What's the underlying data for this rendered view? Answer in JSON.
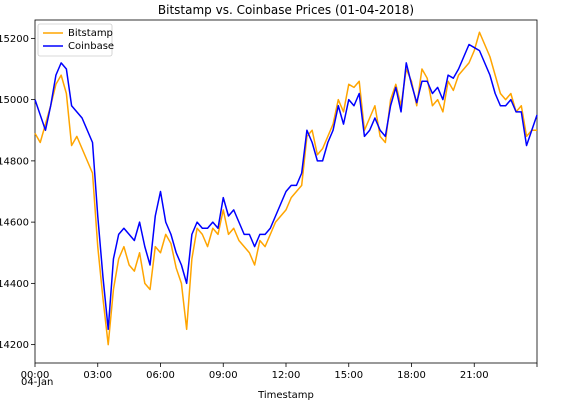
{
  "chart_data": {
    "type": "line",
    "title": "Bitstamp vs. Coinbase Prices (01-04-2018)",
    "xlabel": "Timestamp",
    "ylabel": "",
    "x_ticks": [
      "00:00",
      "03:00",
      "06:00",
      "09:00",
      "12:00",
      "15:00",
      "18:00",
      "21:00",
      ""
    ],
    "x_tick_hours": [
      0,
      3,
      6,
      9,
      12,
      15,
      18,
      21,
      24
    ],
    "x_date_label": "04-Jan",
    "xlim": [
      0,
      24
    ],
    "y_ticks": [
      14200,
      14400,
      14600,
      14800,
      15000,
      15200
    ],
    "ylim": [
      14140,
      15260
    ],
    "grid": false,
    "legend_position": "top-left",
    "series": [
      {
        "name": "Bitstamp",
        "color": "#ffa500",
        "x": [
          0.0,
          0.25,
          0.5,
          0.75,
          1.0,
          1.25,
          1.5,
          1.75,
          2.0,
          2.25,
          2.5,
          2.75,
          3.0,
          3.25,
          3.5,
          3.75,
          4.0,
          4.25,
          4.5,
          4.75,
          5.0,
          5.25,
          5.5,
          5.75,
          6.0,
          6.25,
          6.5,
          6.75,
          7.0,
          7.25,
          7.5,
          7.75,
          8.0,
          8.25,
          8.5,
          8.75,
          9.0,
          9.25,
          9.5,
          9.75,
          10.0,
          10.25,
          10.5,
          10.75,
          11.0,
          11.25,
          11.5,
          11.75,
          12.0,
          12.25,
          12.5,
          12.75,
          13.0,
          13.25,
          13.5,
          13.75,
          14.0,
          14.25,
          14.5,
          14.75,
          15.0,
          15.25,
          15.5,
          15.75,
          16.0,
          16.25,
          16.5,
          16.75,
          17.0,
          17.25,
          17.5,
          17.75,
          18.0,
          18.25,
          18.5,
          18.75,
          19.0,
          19.25,
          19.5,
          19.75,
          20.0,
          20.25,
          20.5,
          20.75,
          21.0,
          21.25,
          21.5,
          21.75,
          22.0,
          22.25,
          22.5,
          22.75,
          23.0,
          23.25,
          23.5,
          23.75,
          24.0
        ],
        "values": [
          14890,
          14860,
          14920,
          14980,
          15050,
          15080,
          15020,
          14850,
          14880,
          14840,
          14800,
          14760,
          14520,
          14350,
          14200,
          14380,
          14480,
          14520,
          14460,
          14440,
          14500,
          14400,
          14380,
          14520,
          14500,
          14560,
          14530,
          14450,
          14400,
          14250,
          14480,
          14580,
          14560,
          14520,
          14580,
          14560,
          14640,
          14560,
          14580,
          14540,
          14520,
          14500,
          14460,
          14540,
          14520,
          14560,
          14600,
          14620,
          14640,
          14680,
          14700,
          14720,
          14880,
          14900,
          14820,
          14840,
          14880,
          14920,
          15000,
          14960,
          15050,
          15040,
          15060,
          14900,
          14940,
          14980,
          14880,
          14860,
          15000,
          15050,
          14980,
          15100,
          15060,
          14980,
          15100,
          15070,
          14980,
          15000,
          14960,
          15060,
          15030,
          15080,
          15100,
          15120,
          15160,
          15220,
          15180,
          15140,
          15080,
          15020,
          15000,
          15020,
          14960,
          14980,
          14880,
          14900,
          14900
        ]
      },
      {
        "name": "Coinbase",
        "color": "#0000ff",
        "x": [
          0.0,
          0.25,
          0.5,
          0.75,
          1.0,
          1.25,
          1.5,
          1.75,
          2.0,
          2.25,
          2.5,
          2.75,
          3.0,
          3.25,
          3.5,
          3.75,
          4.0,
          4.25,
          4.5,
          4.75,
          5.0,
          5.25,
          5.5,
          5.75,
          6.0,
          6.25,
          6.5,
          6.75,
          7.0,
          7.25,
          7.5,
          7.75,
          8.0,
          8.25,
          8.5,
          8.75,
          9.0,
          9.25,
          9.5,
          9.75,
          10.0,
          10.25,
          10.5,
          10.75,
          11.0,
          11.25,
          11.5,
          11.75,
          12.0,
          12.25,
          12.5,
          12.75,
          13.0,
          13.25,
          13.5,
          13.75,
          14.0,
          14.25,
          14.5,
          14.75,
          15.0,
          15.25,
          15.5,
          15.75,
          16.0,
          16.25,
          16.5,
          16.75,
          17.0,
          17.25,
          17.5,
          17.75,
          18.0,
          18.25,
          18.5,
          18.75,
          19.0,
          19.25,
          19.5,
          19.75,
          20.0,
          20.25,
          20.5,
          20.75,
          21.0,
          21.25,
          21.5,
          21.75,
          22.0,
          22.25,
          22.5,
          22.75,
          23.0,
          23.25,
          23.5,
          23.75,
          24.0
        ],
        "values": [
          15000,
          14950,
          14900,
          14980,
          15080,
          15120,
          15100,
          14980,
          14960,
          14940,
          14900,
          14860,
          14620,
          14420,
          14250,
          14480,
          14560,
          14580,
          14560,
          14540,
          14600,
          14520,
          14460,
          14620,
          14700,
          14600,
          14560,
          14500,
          14460,
          14400,
          14560,
          14600,
          14580,
          14580,
          14600,
          14580,
          14680,
          14620,
          14640,
          14600,
          14560,
          14560,
          14520,
          14560,
          14560,
          14580,
          14620,
          14660,
          14700,
          14720,
          14720,
          14760,
          14900,
          14860,
          14800,
          14800,
          14860,
          14900,
          14980,
          14920,
          15000,
          14980,
          15020,
          14880,
          14900,
          14940,
          14900,
          14880,
          14980,
          15040,
          14960,
          15120,
          15050,
          14990,
          15060,
          15060,
          15020,
          15040,
          15000,
          15080,
          15070,
          15100,
          15140,
          15180,
          15170,
          15160,
          15120,
          15080,
          15020,
          14980,
          14980,
          15000,
          14960,
          14960,
          14850,
          14900,
          14950
        ]
      }
    ]
  }
}
